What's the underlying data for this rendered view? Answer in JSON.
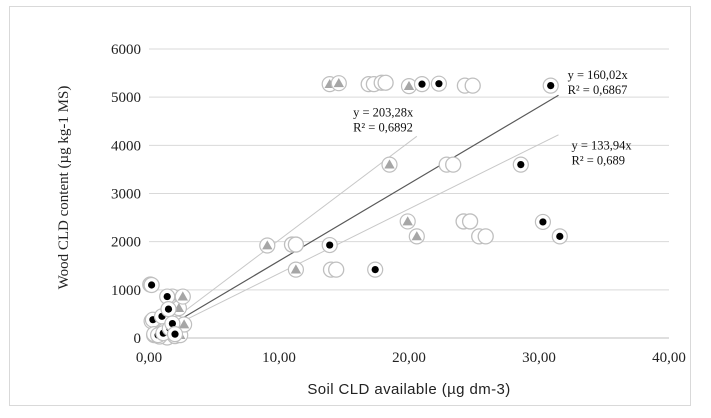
{
  "chart_data": {
    "type": "scatter",
    "xlabel": "Soil CLD available (µg dm-3)",
    "ylabel": "Wood CLD content (µg kg-1 MS)",
    "xlim": [
      0,
      40
    ],
    "ylim": [
      0,
      6000
    ],
    "x_ticks": [
      "0,00",
      "10,00",
      "20,00",
      "30,00",
      "40,00"
    ],
    "y_ticks": [
      "0",
      "1000",
      "2000",
      "3000",
      "4000",
      "5000",
      "6000"
    ],
    "x_tick_values": [
      0,
      10,
      20,
      30,
      40
    ],
    "y_tick_values": [
      0,
      1000,
      2000,
      3000,
      4000,
      5000,
      6000
    ],
    "grid": "horizontal",
    "legend": "none",
    "series": [
      {
        "marker": "triangle",
        "color": "#a6a6a6",
        "slope": 203.28,
        "trendline_color": "#c8c8c8",
        "trendline_x_end": 20.6,
        "points": [
          [
            0.2,
            350
          ],
          [
            0.5,
            80
          ],
          [
            0.8,
            30
          ],
          [
            1.2,
            150
          ],
          [
            1.8,
            860
          ],
          [
            2.2,
            300
          ],
          [
            2.3,
            620
          ],
          [
            2.4,
            60
          ],
          [
            2.6,
            860
          ],
          [
            2.7,
            280
          ],
          [
            9.1,
            1920
          ],
          [
            11.3,
            1420
          ],
          [
            13.9,
            5270
          ],
          [
            14.6,
            5290
          ],
          [
            18.5,
            3600
          ],
          [
            19.9,
            2420
          ],
          [
            20.0,
            5230
          ],
          [
            20.6,
            2110
          ]
        ]
      },
      {
        "marker": "open-circle",
        "color": "#bfbfbf",
        "slope": 133.94,
        "trendline_color": "#c8c8c8",
        "trendline_x_end": 31.5,
        "points": [
          [
            0.1,
            1110
          ],
          [
            0.4,
            60
          ],
          [
            0.9,
            40
          ],
          [
            1.4,
            10
          ],
          [
            1.8,
            210
          ],
          [
            2.0,
            40
          ],
          [
            11.0,
            1940
          ],
          [
            11.3,
            1940
          ],
          [
            14.0,
            1420
          ],
          [
            14.4,
            1420
          ],
          [
            16.9,
            5270
          ],
          [
            17.3,
            5270
          ],
          [
            17.9,
            5300
          ],
          [
            18.2,
            5300
          ],
          [
            22.9,
            3600
          ],
          [
            23.4,
            3600
          ],
          [
            24.2,
            2420
          ],
          [
            24.7,
            2420
          ],
          [
            25.4,
            2110
          ],
          [
            25.9,
            2110
          ],
          [
            24.3,
            5240
          ],
          [
            24.9,
            5240
          ]
        ]
      },
      {
        "marker": "filled-circle",
        "color": "#000000",
        "slope": 160.02,
        "trendline_color": "#595959",
        "trendline_x_end": 31.5,
        "points": [
          [
            0.2,
            1100
          ],
          [
            0.3,
            380
          ],
          [
            0.4,
            80
          ],
          [
            0.7,
            60
          ],
          [
            1.0,
            450
          ],
          [
            1.1,
            100
          ],
          [
            1.4,
            860
          ],
          [
            1.5,
            600
          ],
          [
            1.6,
            200
          ],
          [
            1.8,
            300
          ],
          [
            2.0,
            80
          ],
          [
            13.9,
            1930
          ],
          [
            17.4,
            1420
          ],
          [
            21.0,
            5270
          ],
          [
            22.3,
            5280
          ],
          [
            28.6,
            3600
          ],
          [
            30.3,
            2410
          ],
          [
            31.6,
            2110
          ],
          [
            30.9,
            5240
          ]
        ]
      }
    ],
    "annotations": [
      {
        "line1": "y = 160,02x",
        "line2": "R² = 0,6867",
        "x": 32.2,
        "y": 5380,
        "y2": 5070
      },
      {
        "line1": "y = 203,28x",
        "line2": "R² = 0,6892",
        "x": 15.7,
        "y": 4600,
        "y2": 4290
      },
      {
        "line1": "y = 133,94x",
        "line2": "R² = 0,689",
        "x": 32.5,
        "y": 3910,
        "y2": 3600
      }
    ]
  }
}
